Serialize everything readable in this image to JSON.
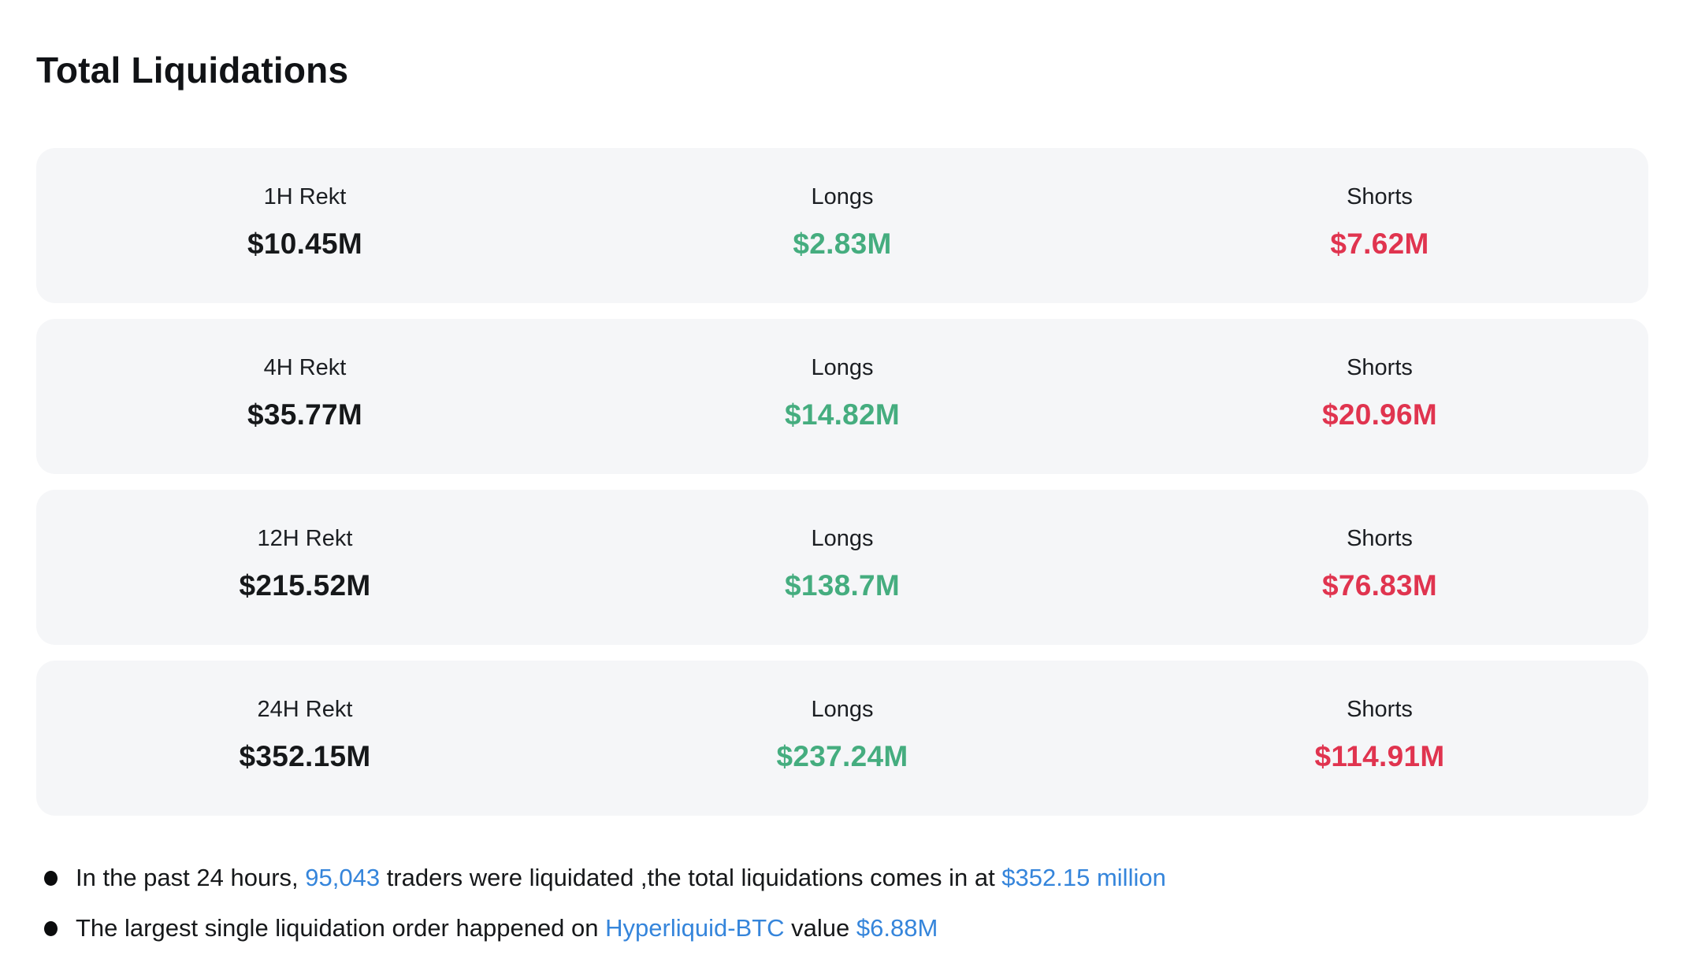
{
  "page": {
    "title": "Total Liquidations"
  },
  "colors": {
    "longs_green": "#45ad7f",
    "shorts_red": "#e0344f",
    "link_blue": "#3585db",
    "card_background": "#f5f6f8"
  },
  "rows": [
    {
      "period_label": "1H Rekt",
      "total": "$10.45M",
      "longs_label": "Longs",
      "longs": "$2.83M",
      "shorts_label": "Shorts",
      "shorts": "$7.62M"
    },
    {
      "period_label": "4H Rekt",
      "total": "$35.77M",
      "longs_label": "Longs",
      "longs": "$14.82M",
      "shorts_label": "Shorts",
      "shorts": "$20.96M"
    },
    {
      "period_label": "12H Rekt",
      "total": "$215.52M",
      "longs_label": "Longs",
      "longs": "$138.7M",
      "shorts_label": "Shorts",
      "shorts": "$76.83M"
    },
    {
      "period_label": "24H Rekt",
      "total": "$352.15M",
      "longs_label": "Longs",
      "longs": "$237.24M",
      "shorts_label": "Shorts",
      "shorts": "$114.91M"
    }
  ],
  "notes": [
    {
      "seg0": "In the past 24 hours, ",
      "link0": "95,043",
      "seg1": " traders were liquidated ,the total liquidations comes in at ",
      "link1": "$352.15 million"
    },
    {
      "seg0": "The largest single liquidation order happened on ",
      "link0": "Hyperliquid-BTC",
      "seg1": " value ",
      "link1": "$6.88M"
    }
  ]
}
